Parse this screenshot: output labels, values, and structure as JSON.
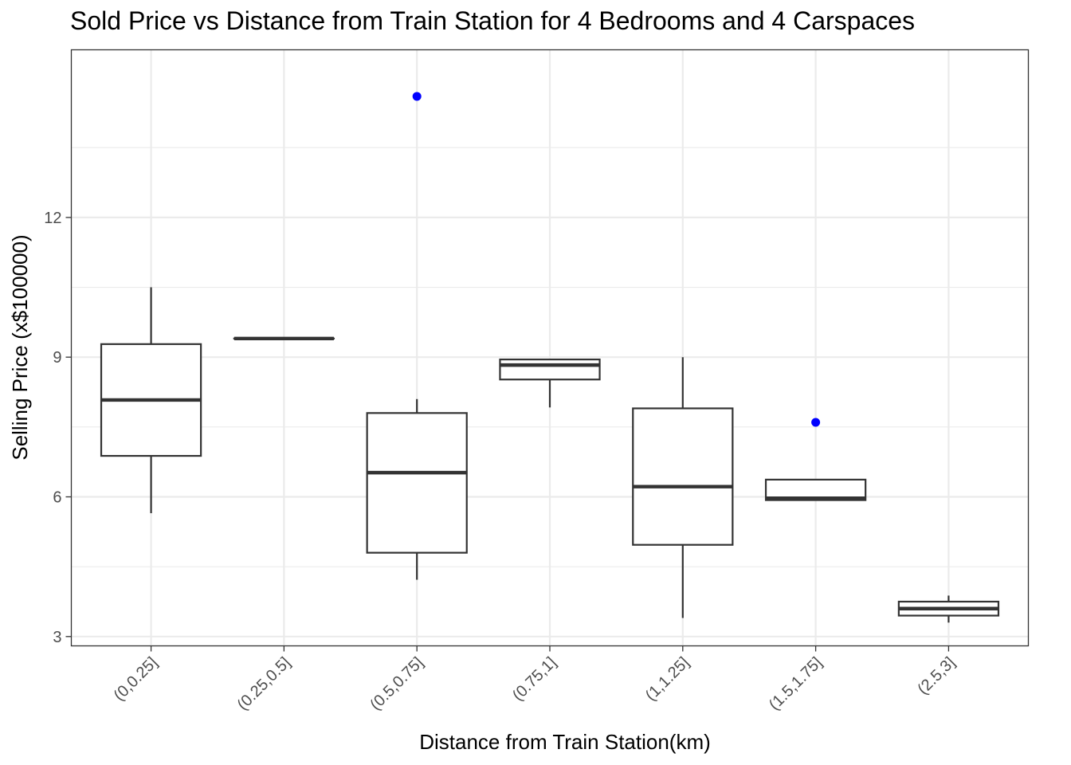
{
  "chart_data": {
    "type": "boxplot",
    "title": "Sold Price vs Distance from Train Station for 4 Bedrooms and 4 Carspaces",
    "xlabel": "Distance from Train Station(km)",
    "ylabel": "Selling Price (x$100000)",
    "ylim": [
      2.8,
      15.6
    ],
    "yticks": [
      3,
      6,
      9,
      12
    ],
    "grid": true,
    "categories": [
      "(0,0.25]",
      "(0.25,0.5]",
      "(0.5,0.75]",
      "(0.75,1]",
      "(1,1.25]",
      "(1.5,1.75]",
      "(2.5,3]"
    ],
    "boxes": [
      {
        "whisker_low": 5.65,
        "q1": 6.88,
        "median": 8.08,
        "q3": 9.28,
        "whisker_high": 10.5,
        "outliers": []
      },
      {
        "whisker_low": 9.4,
        "q1": 9.4,
        "median": 9.4,
        "q3": 9.4,
        "whisker_high": 9.4,
        "outliers": []
      },
      {
        "whisker_low": 4.22,
        "q1": 4.8,
        "median": 6.52,
        "q3": 7.8,
        "whisker_high": 8.1,
        "outliers": [
          14.6
        ]
      },
      {
        "whisker_low": 7.92,
        "q1": 8.52,
        "median": 8.83,
        "q3": 8.95,
        "whisker_high": 8.95,
        "outliers": []
      },
      {
        "whisker_low": 3.4,
        "q1": 4.97,
        "median": 6.22,
        "q3": 7.9,
        "whisker_high": 9.0,
        "outliers": []
      },
      {
        "whisker_low": 5.93,
        "q1": 5.93,
        "median": 5.97,
        "q3": 6.37,
        "whisker_high": 6.37,
        "outliers": [
          7.6
        ]
      },
      {
        "whisker_low": 3.3,
        "q1": 3.45,
        "median": 3.6,
        "q3": 3.75,
        "whisker_high": 3.88,
        "outliers": []
      }
    ],
    "colors": {
      "outlier": "#0000ff",
      "box": "#333333",
      "grid": "#ebebeb",
      "border": "#333333"
    }
  }
}
